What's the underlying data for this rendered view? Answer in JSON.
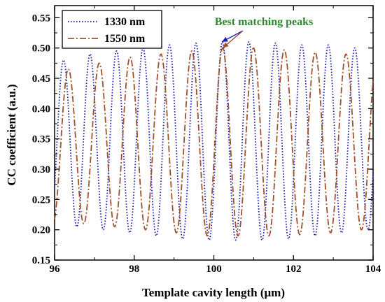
{
  "chart_data": {
    "type": "line",
    "xlabel": "Template cavity length (μm)",
    "ylabel": "CC coefficient (a.u.)",
    "xlim": [
      96,
      104
    ],
    "ylim": [
      0.15,
      0.57
    ],
    "x_ticks": [
      "96",
      "98",
      "100",
      "102",
      "104"
    ],
    "y_ticks": [
      "0.15",
      "0.20",
      "0.25",
      "0.30",
      "0.35",
      "0.40",
      "0.45",
      "0.50",
      "0.55"
    ],
    "legend_position": "top-left",
    "grid": false,
    "series": [
      {
        "name": "1330 nm",
        "color": "#1f1fb4",
        "style": "dotted",
        "period": 0.665,
        "phase_x": 99.55,
        "peaks": [
          [
            96.22,
            0.48
          ],
          [
            96.89,
            0.49
          ],
          [
            97.55,
            0.495
          ],
          [
            98.22,
            0.5
          ],
          [
            98.88,
            0.505
          ],
          [
            99.55,
            0.508
          ],
          [
            100.22,
            0.51
          ],
          [
            100.88,
            0.51
          ],
          [
            101.55,
            0.508
          ],
          [
            102.21,
            0.505
          ],
          [
            102.88,
            0.505
          ],
          [
            103.54,
            0.5
          ]
        ],
        "troughs": [
          [
            96.55,
            0.205
          ],
          [
            97.22,
            0.2
          ],
          [
            97.88,
            0.195
          ],
          [
            98.55,
            0.19
          ],
          [
            99.21,
            0.185
          ],
          [
            99.88,
            0.183
          ],
          [
            100.55,
            0.183
          ],
          [
            101.21,
            0.183
          ],
          [
            101.88,
            0.185
          ],
          [
            102.54,
            0.19
          ],
          [
            103.21,
            0.195
          ],
          [
            103.87,
            0.2
          ]
        ]
      },
      {
        "name": "1550 nm",
        "color": "#a0522d",
        "style": "dash-dot",
        "period": 0.775,
        "phase_x": 100.22,
        "peaks": [
          [
            96.35,
            0.465
          ],
          [
            97.12,
            0.475
          ],
          [
            97.9,
            0.485
          ],
          [
            98.67,
            0.49
          ],
          [
            99.45,
            0.495
          ],
          [
            100.22,
            0.5
          ],
          [
            101.0,
            0.5
          ],
          [
            101.77,
            0.497
          ],
          [
            102.55,
            0.493
          ],
          [
            103.32,
            0.49
          ]
        ],
        "troughs": [
          [
            96.74,
            0.21
          ],
          [
            97.51,
            0.205
          ],
          [
            98.29,
            0.2
          ],
          [
            99.06,
            0.195
          ],
          [
            99.84,
            0.19
          ],
          [
            100.61,
            0.19
          ],
          [
            101.39,
            0.19
          ],
          [
            102.16,
            0.192
          ],
          [
            102.94,
            0.195
          ],
          [
            103.71,
            0.2
          ]
        ]
      }
    ],
    "annotation": {
      "text": "Best matching peaks",
      "color": "#2e8b2e",
      "targets": [
        [
          100.2,
          0.51
        ],
        [
          100.22,
          0.5
        ]
      ]
    }
  }
}
